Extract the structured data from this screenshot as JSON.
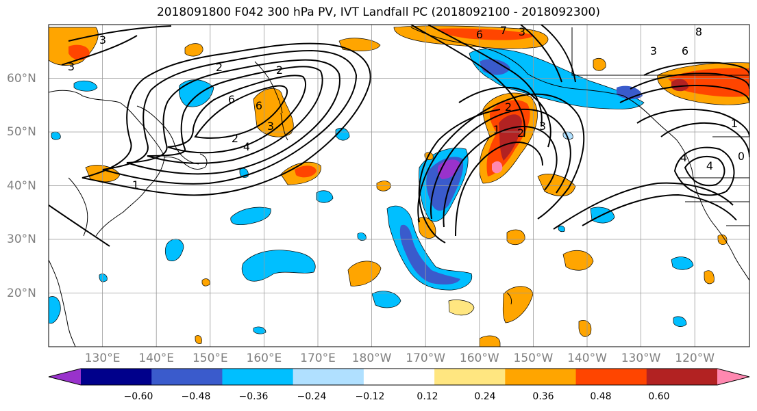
{
  "title": "2018091800 F042 300 hPa PV, IVT Landfall PC (2018092100 - 2018092300)",
  "lon_labels": [
    "130°E",
    "140°E",
    "150°E",
    "160°E",
    "170°E",
    "180°W",
    "170°W",
    "160°W",
    "150°W",
    "140°W",
    "130°W",
    "120°W"
  ],
  "lat_labels": [
    "60°N",
    "50°N",
    "40°N",
    "30°N",
    "20°N"
  ],
  "colorbar": {
    "colors": [
      "#9932cc",
      "#00008b",
      "#3a5bcc",
      "#00bfff",
      "#b0e0ff",
      "#ffffff",
      "#ffe680",
      "#ffa500",
      "#ff4500",
      "#b22222",
      "#ff88b0"
    ],
    "ticks": [
      "−0.60",
      "−0.48",
      "−0.36",
      "−0.24",
      "−0.12",
      "0.12",
      "0.24",
      "0.36",
      "0.48",
      "0.60"
    ]
  },
  "contour_labels": [
    "3",
    "3",
    "2",
    "6",
    "2",
    "6",
    "4",
    "2",
    "3",
    "1",
    "6",
    "7",
    "3",
    "2",
    "1",
    "2",
    "3",
    "4",
    "8",
    "6",
    "3",
    "1",
    "4",
    "0"
  ]
}
